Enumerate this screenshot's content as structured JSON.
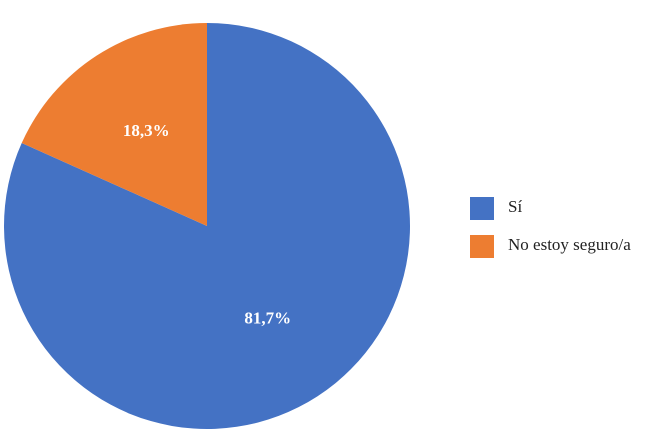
{
  "chart_data": {
    "type": "pie",
    "categories": [
      "Sí",
      "No estoy seguro/a"
    ],
    "values": [
      81.7,
      18.3
    ],
    "value_labels": [
      "81,7%",
      "18,3%"
    ],
    "colors": [
      "#4472c4",
      "#ed7d31"
    ],
    "legend": "right"
  }
}
